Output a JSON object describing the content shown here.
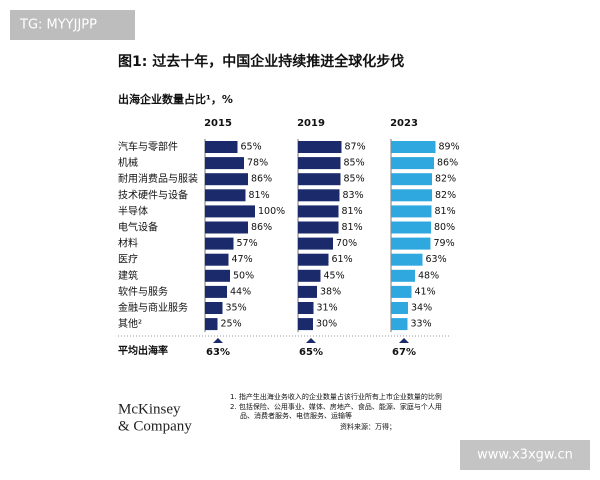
{
  "watermarks": {
    "top": "TG: MYYJJPP",
    "bottom": "www.x3xgw.cn"
  },
  "chart_data": {
    "type": "bar",
    "orientation": "horizontal",
    "title": "图1: 过去十年，中国企业持续推进全球化步伐",
    "subtitle": "出海企业数量占比¹，%",
    "categories": [
      "汽车与零部件",
      "机械",
      "耐用消费品与服装",
      "技术硬件与设备",
      "半导体",
      "电气设备",
      "材料",
      "医疗",
      "建筑",
      "软件与服务",
      "金融与商业服务",
      "其他²"
    ],
    "xlim": [
      0,
      100
    ],
    "series": [
      {
        "name": "2015",
        "color": "#1b2a6b",
        "values": [
          65,
          78,
          86,
          81,
          100,
          86,
          57,
          47,
          50,
          44,
          35,
          25
        ],
        "value_labels": [
          "65%",
          "78%",
          "86%",
          "81%",
          "100%",
          "86%",
          "57%",
          "47%",
          "50%",
          "44%",
          "35%",
          "25%"
        ]
      },
      {
        "name": "2019",
        "color": "#1b2a6b",
        "values": [
          87,
          85,
          85,
          83,
          81,
          81,
          70,
          61,
          45,
          38,
          31,
          30
        ],
        "value_labels": [
          "87%",
          "85%",
          "85%",
          "83%",
          "81%",
          "81%",
          "70%",
          "61%",
          "45%",
          "38%",
          "31%",
          "30%"
        ]
      },
      {
        "name": "2023",
        "color": "#2ea8df",
        "values": [
          89,
          86,
          82,
          82,
          81,
          80,
          79,
          63,
          48,
          41,
          34,
          33
        ],
        "value_labels": [
          "89%",
          "86%",
          "82%",
          "82%",
          "81%",
          "80%",
          "79%",
          "63%",
          "48%",
          "41%",
          "34%",
          "33%"
        ]
      }
    ],
    "average": {
      "label": "平均出海率",
      "values": [
        63,
        65,
        67
      ],
      "value_labels": [
        "63%",
        "65%",
        "67%"
      ]
    }
  },
  "footnotes": [
    "1.  指产生出海业务收入的企业数量占该行业所有上市企业数量的比例",
    "2.  包括保险、公用事业、媒体、房地产、食品、能源、家庭与个人用",
    "品、消费者服务、电信服务、运输等",
    "资料来源：万得；"
  ],
  "logo": [
    "McKinsey",
    "& Company"
  ]
}
